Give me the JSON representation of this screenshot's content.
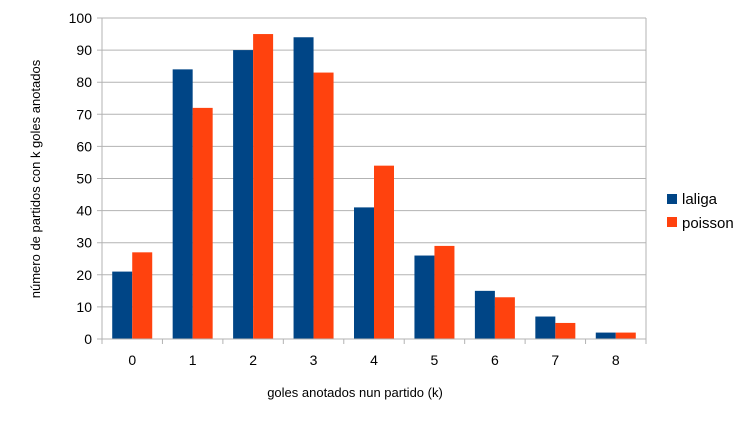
{
  "chart_data": {
    "type": "bar",
    "categories": [
      "0",
      "1",
      "2",
      "3",
      "4",
      "5",
      "6",
      "7",
      "8"
    ],
    "series": [
      {
        "name": "laliga",
        "color": "#004586",
        "values": [
          21,
          84,
          90,
          94,
          41,
          26,
          15,
          7,
          2
        ]
      },
      {
        "name": "poisson",
        "color": "#ff420e",
        "values": [
          27,
          72,
          95,
          83,
          54,
          29,
          13,
          5,
          2
        ]
      }
    ],
    "yticks": [
      "0",
      "10",
      "20",
      "30",
      "40",
      "50",
      "60",
      "70",
      "80",
      "90",
      "100"
    ],
    "ylim": [
      0,
      100
    ],
    "xlabel": "goles anotados nun partido (k)",
    "ylabel": "número de partidos con k goles anotados",
    "grid": true,
    "legend_position": "right"
  }
}
